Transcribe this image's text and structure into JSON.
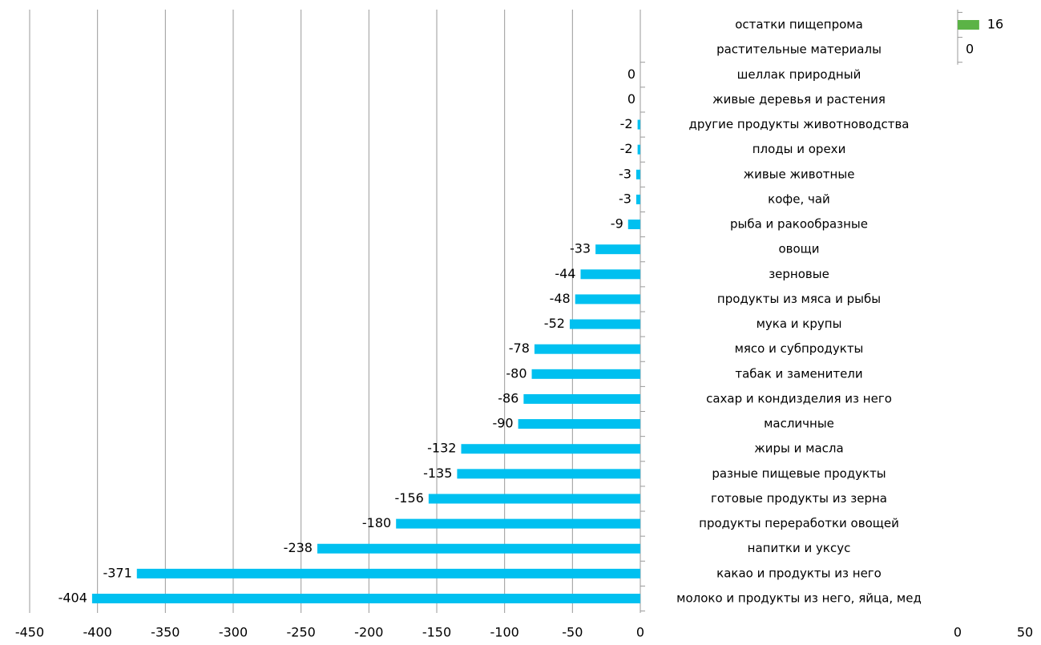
{
  "chart_data": [
    {
      "type": "bar",
      "categories": [
        "остатки пищепрома",
        "растительные материалы"
      ],
      "values": [
        16,
        0
      ],
      "color": "#5bb346",
      "xlim": [
        0,
        50
      ],
      "xticks": [
        0,
        50
      ]
    },
    {
      "type": "bar",
      "categories": [
        "шеллак природный",
        "живые деревья и растения",
        "другие продукты животноводства",
        "плоды и орехи",
        "живые животные",
        "кофе, чай",
        "рыба и ракообразные",
        "овощи",
        "зерновые",
        "продукты из мяса и рыбы",
        "мука и крупы",
        "мясо и субпродукты",
        "табак и заменители",
        "сахар и кондизделия из него",
        "масличные",
        "жиры и масла",
        "разные пищевые продукты",
        "готовые продукты из зерна",
        "продукты переработки овощей",
        "напитки и уксус",
        "какао и продукты из него",
        "молоко и продукты из него, яйца, мед"
      ],
      "values": [
        0,
        0,
        -2,
        -2,
        -3,
        -3,
        -9,
        -33,
        -44,
        -48,
        -52,
        -78,
        -80,
        -86,
        -90,
        -132,
        -135,
        -156,
        -180,
        -238,
        -371,
        -404
      ],
      "color": "#00c0f0",
      "xlim": [
        -450,
        0
      ],
      "xticks": [
        -450,
        -400,
        -350,
        -300,
        -250,
        -200,
        -150,
        -100,
        -50,
        0
      ]
    }
  ]
}
